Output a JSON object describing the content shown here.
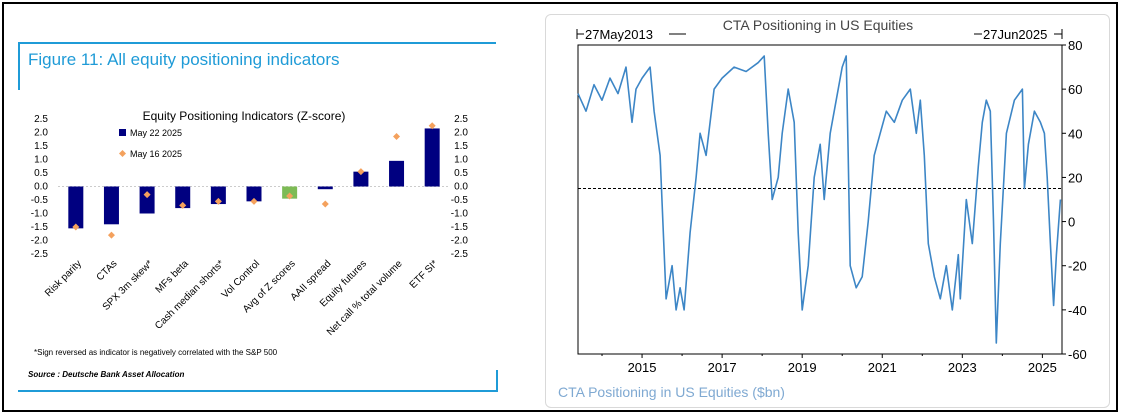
{
  "left": {
    "figure_title": "Figure 11: All equity positioning indicators",
    "source": "Source : Deutsche Bank Asset Allocation"
  },
  "chart_data": [
    {
      "type": "bar",
      "title": "Equity Positioning Indicators (Z-score)",
      "categories": [
        "Risk parity",
        "CTAs",
        "SPX 3m skew*",
        "MFs beta",
        "Cash median shorts*",
        "Vol Control",
        "Avg of Z scores",
        "AAII spread",
        "Equity futures",
        "Net call % total volume",
        "ETF SI*"
      ],
      "series": [
        {
          "name": "May 22 2025",
          "values": [
            -1.55,
            -1.4,
            -1.0,
            -0.8,
            -0.65,
            -0.55,
            -0.45,
            -0.1,
            0.55,
            0.95,
            2.15
          ],
          "color": "#000080"
        },
        {
          "name": "May 16 2025",
          "values": [
            -1.5,
            -1.8,
            -0.3,
            -0.7,
            -0.55,
            -0.55,
            -0.35,
            -0.65,
            0.55,
            1.85,
            2.25
          ],
          "color": "#f4a15d",
          "marker": "diamond"
        }
      ],
      "highlight": {
        "category": "Avg of Z scores",
        "color": "#7dbb55"
      },
      "ylim": [
        -2.5,
        2.5
      ],
      "yticks": [
        "2.5",
        "2.0",
        "1.5",
        "1.0",
        "0.5",
        "0.0",
        "-0.5",
        "-1.0",
        "-1.5",
        "-2.0",
        "-2.5"
      ],
      "footnote": "*Sign reversed as indicator is negatively correlated with the S&P 500",
      "legend_position": "top-left"
    },
    {
      "type": "line",
      "title": "CTA Positioning in US Equities",
      "subtitle": "CTA Positioning in US Equities ($bn)",
      "start_label": "27May2013",
      "end_label": "27Jun2025",
      "x_start": 2013.4,
      "x_end": 2025.49,
      "xticks": [
        "2015",
        "2017",
        "2019",
        "2021",
        "2023",
        "2025"
      ],
      "ylim": [
        -60,
        80
      ],
      "yticks": [
        "80",
        "60",
        "40",
        "20",
        "0",
        "-20",
        "-40",
        "-60"
      ],
      "yaxis_side": "right",
      "reference_line": 15,
      "series": [
        {
          "color": "#3d86c6",
          "points": [
            [
              2013.4,
              58
            ],
            [
              2013.6,
              50
            ],
            [
              2013.8,
              62
            ],
            [
              2014.0,
              55
            ],
            [
              2014.2,
              65
            ],
            [
              2014.4,
              58
            ],
            [
              2014.6,
              70
            ],
            [
              2014.75,
              45
            ],
            [
              2014.85,
              60
            ],
            [
              2015.0,
              65
            ],
            [
              2015.2,
              70
            ],
            [
              2015.3,
              50
            ],
            [
              2015.45,
              30
            ],
            [
              2015.6,
              -35
            ],
            [
              2015.75,
              -20
            ],
            [
              2015.85,
              -40
            ],
            [
              2015.95,
              -30
            ],
            [
              2016.05,
              -40
            ],
            [
              2016.2,
              -5
            ],
            [
              2016.35,
              20
            ],
            [
              2016.45,
              40
            ],
            [
              2016.6,
              30
            ],
            [
              2016.8,
              60
            ],
            [
              2017.0,
              65
            ],
            [
              2017.3,
              70
            ],
            [
              2017.6,
              68
            ],
            [
              2017.9,
              72
            ],
            [
              2018.05,
              75
            ],
            [
              2018.15,
              40
            ],
            [
              2018.25,
              10
            ],
            [
              2018.4,
              20
            ],
            [
              2018.5,
              40
            ],
            [
              2018.65,
              60
            ],
            [
              2018.8,
              45
            ],
            [
              2018.9,
              -5
            ],
            [
              2019.0,
              -40
            ],
            [
              2019.15,
              -20
            ],
            [
              2019.3,
              20
            ],
            [
              2019.45,
              35
            ],
            [
              2019.55,
              10
            ],
            [
              2019.7,
              40
            ],
            [
              2019.85,
              55
            ],
            [
              2020.0,
              70
            ],
            [
              2020.1,
              75
            ],
            [
              2020.15,
              30
            ],
            [
              2020.2,
              -20
            ],
            [
              2020.35,
              -30
            ],
            [
              2020.5,
              -25
            ],
            [
              2020.65,
              0
            ],
            [
              2020.8,
              30
            ],
            [
              2020.95,
              40
            ],
            [
              2021.1,
              50
            ],
            [
              2021.3,
              45
            ],
            [
              2021.5,
              55
            ],
            [
              2021.7,
              60
            ],
            [
              2021.85,
              40
            ],
            [
              2021.95,
              55
            ],
            [
              2022.05,
              30
            ],
            [
              2022.15,
              -10
            ],
            [
              2022.3,
              -25
            ],
            [
              2022.45,
              -35
            ],
            [
              2022.6,
              -20
            ],
            [
              2022.75,
              -40
            ],
            [
              2022.9,
              -15
            ],
            [
              2022.95,
              -35
            ],
            [
              2023.1,
              10
            ],
            [
              2023.25,
              -10
            ],
            [
              2023.4,
              25
            ],
            [
              2023.5,
              45
            ],
            [
              2023.6,
              55
            ],
            [
              2023.7,
              50
            ],
            [
              2023.78,
              0
            ],
            [
              2023.85,
              -55
            ],
            [
              2023.95,
              -10
            ],
            [
              2024.1,
              40
            ],
            [
              2024.3,
              55
            ],
            [
              2024.5,
              60
            ],
            [
              2024.55,
              15
            ],
            [
              2024.65,
              35
            ],
            [
              2024.8,
              50
            ],
            [
              2024.95,
              45
            ],
            [
              2025.05,
              40
            ],
            [
              2025.12,
              20
            ],
            [
              2025.2,
              -10
            ],
            [
              2025.28,
              -38
            ],
            [
              2025.35,
              -15
            ],
            [
              2025.45,
              10
            ]
          ]
        }
      ]
    }
  ]
}
